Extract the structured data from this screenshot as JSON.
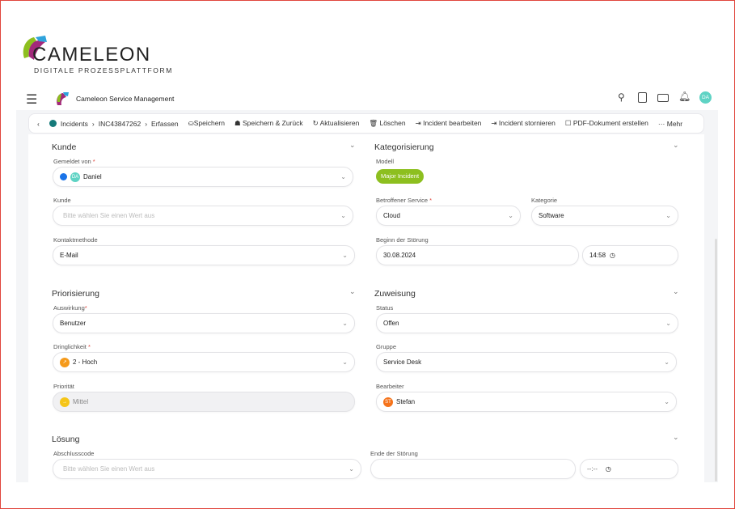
{
  "brand": {
    "name": "CAMELEON",
    "tagline": "DIGITALE PROZESSPLATTFORM"
  },
  "appbar": {
    "title": "Cameleon Service Management",
    "avatar": "DA"
  },
  "toolbar": {
    "breadcrumb": [
      "Incidents",
      "INC43847262",
      "Erfassen"
    ],
    "actions": [
      "Speichern",
      "Speichern & Zurück",
      "Aktualisieren",
      "Löschen",
      "Incident bearbeiten",
      "Incident stornieren",
      "PDF-Dokument erstellen",
      "Mehr"
    ]
  },
  "kunde": {
    "title": "Kunde",
    "gemeldet_label": "Gemeldet von",
    "gemeldet_avatar": "DA",
    "gemeldet_value": "Daniel",
    "kunde_label": "Kunde",
    "kunde_placeholder": "Bitte wählen Sie einen Wert aus",
    "kontakt_label": "Kontaktmethode",
    "kontakt_value": "E-Mail"
  },
  "kategorisierung": {
    "title": "Kategorisierung",
    "modell_label": "Modell",
    "modell_value": "Major Incident",
    "service_label": "Betroffener Service",
    "service_value": "Cloud",
    "kategorie_label": "Kategorie",
    "kategorie_value": "Software",
    "beginn_label": "Beginn der Störung",
    "beginn_date": "30.08.2024",
    "beginn_time": "14:58"
  },
  "priorisierung": {
    "title": "Priorisierung",
    "auswirkung_label": "Auswirkung",
    "auswirkung_value": "Benutzer",
    "dringlichkeit_label": "Dringlichkeit",
    "dringlichkeit_value": "2 - Hoch",
    "prioritaet_label": "Priorität",
    "prioritaet_value": "Mittel"
  },
  "zuweisung": {
    "title": "Zuweisung",
    "status_label": "Status",
    "status_value": "Offen",
    "gruppe_label": "Gruppe",
    "gruppe_value": "Service Desk",
    "bearbeiter_label": "Bearbeiter",
    "bearbeiter_avatar": "ST",
    "bearbeiter_value": "Stefan"
  },
  "loesung": {
    "title": "Lösung",
    "abschluss_label": "Abschlusscode",
    "abschluss_placeholder": "Bitte wählen Sie einen Wert aus",
    "ende_label": "Ende der Störung",
    "ende_time": "--:--"
  },
  "colors": {
    "accent_green": "#8dbf1f",
    "avatar_teal": "#5fd3c4",
    "urgency_orange": "#f59a1b",
    "priority_yellow": "#f5c518",
    "required": "#e0453c"
  }
}
